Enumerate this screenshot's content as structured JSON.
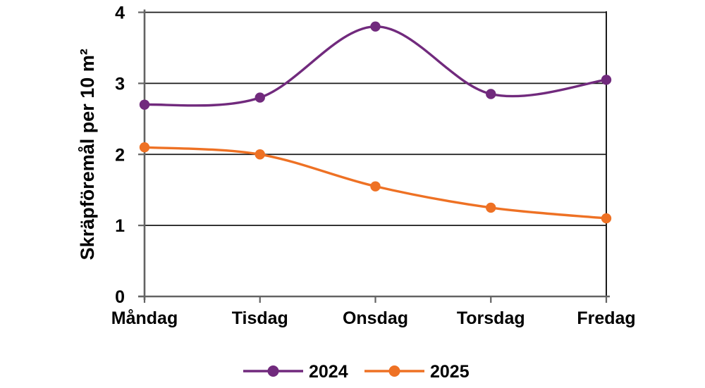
{
  "chart_data": {
    "type": "line",
    "title": "",
    "categories": [
      "Måndag",
      "Tisdag",
      "Onsdag",
      "Torsdag",
      "Fredag"
    ],
    "series": [
      {
        "name": "2024",
        "color": "#712A7D",
        "values": [
          2.7,
          2.8,
          3.8,
          2.85,
          3.05
        ]
      },
      {
        "name": "2025",
        "color": "#EE7124",
        "values": [
          2.1,
          2.0,
          1.55,
          1.25,
          1.1
        ]
      }
    ],
    "xlabel": "",
    "ylabel": "Skräpföremål per 10 m²",
    "ylim": [
      0,
      4
    ],
    "yticks": [
      0,
      1,
      2,
      3,
      4
    ],
    "grid": "horizontal-black",
    "smooth_lines": true,
    "markers": "circle",
    "legend_position": "bottom"
  },
  "colors": {
    "grid": "#1a1a1a",
    "axis": "#636363",
    "text": "#000000",
    "background": "#ffffff"
  }
}
